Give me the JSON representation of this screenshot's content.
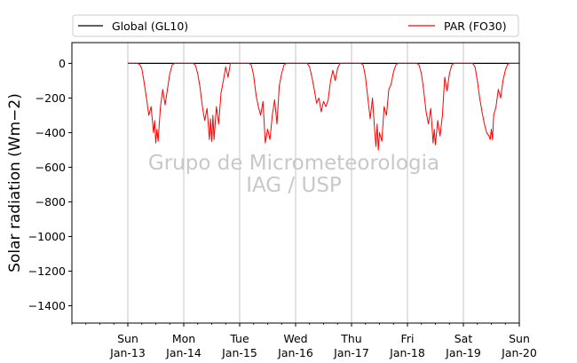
{
  "chart_data": {
    "type": "line",
    "ylabel": "Solar radiation (Wm−2)",
    "ylim": [
      -1500,
      120
    ],
    "xlim": [
      "2020-01-12T00:00",
      "2020-01-20T00:00"
    ],
    "y_ticks": [
      0,
      -200,
      -400,
      -600,
      -800,
      -1000,
      -1200,
      -1400
    ],
    "y_tick_labels": [
      "0",
      "−200",
      "−400",
      "−600",
      "−800",
      "−1000",
      "−1200",
      "−1400"
    ],
    "x_ticks": [
      {
        "x": "2020-01-13T00:00",
        "line1": "Sun",
        "line2": "Jan-13"
      },
      {
        "x": "2020-01-14T00:00",
        "line1": "Mon",
        "line2": "Jan-14"
      },
      {
        "x": "2020-01-15T00:00",
        "line1": "Tue",
        "line2": "Jan-15"
      },
      {
        "x": "2020-01-16T00:00",
        "line1": "Wed",
        "line2": "Jan-16"
      },
      {
        "x": "2020-01-17T00:00",
        "line1": "Thu",
        "line2": "Jan-17"
      },
      {
        "x": "2020-01-18T00:00",
        "line1": "Fri",
        "line2": "Jan-18"
      },
      {
        "x": "2020-01-19T00:00",
        "line1": "Sat",
        "line2": "Jan-19"
      },
      {
        "x": "2020-01-20T00:00",
        "line1": "Sun",
        "line2": "Jan-20"
      }
    ],
    "grid": "vertical",
    "legend": {
      "placement": "top"
    },
    "watermark": [
      "Grupo de Micrometeorologia",
      "IAG / USP"
    ],
    "series": [
      {
        "name": "Global (GL10)",
        "color": "#000000",
        "points": [
          [
            "2020-01-13T00:00",
            0
          ],
          [
            "2020-01-20T00:00",
            0
          ]
        ]
      },
      {
        "name": "PAR (FO30)",
        "color": "#ff0000",
        "points": [
          [
            "2020-01-13T00:00",
            0
          ],
          [
            "2020-01-13T04:00",
            0
          ],
          [
            "2020-01-13T05:00",
            -5
          ],
          [
            "2020-01-13T06:00",
            -30
          ],
          [
            "2020-01-13T07:00",
            -110
          ],
          [
            "2020-01-13T08:00",
            -200
          ],
          [
            "2020-01-13T09:00",
            -300
          ],
          [
            "2020-01-13T10:00",
            -250
          ],
          [
            "2020-01-13T11:00",
            -400
          ],
          [
            "2020-01-13T11:30",
            -330
          ],
          [
            "2020-01-13T12:00",
            -460
          ],
          [
            "2020-01-13T12:30",
            -380
          ],
          [
            "2020-01-13T13:00",
            -450
          ],
          [
            "2020-01-13T14:00",
            -250
          ],
          [
            "2020-01-13T15:00",
            -150
          ],
          [
            "2020-01-13T16:00",
            -240
          ],
          [
            "2020-01-13T17:00",
            -150
          ],
          [
            "2020-01-13T18:00",
            -60
          ],
          [
            "2020-01-13T19:00",
            -10
          ],
          [
            "2020-01-13T20:00",
            0
          ],
          [
            "2020-01-14T00:00",
            0
          ],
          [
            "2020-01-14T04:00",
            0
          ],
          [
            "2020-01-14T05:00",
            -10
          ],
          [
            "2020-01-14T06:00",
            -60
          ],
          [
            "2020-01-14T07:00",
            -140
          ],
          [
            "2020-01-14T08:00",
            -250
          ],
          [
            "2020-01-14T09:00",
            -330
          ],
          [
            "2020-01-14T10:00",
            -260
          ],
          [
            "2020-01-14T11:00",
            -440
          ],
          [
            "2020-01-14T11:30",
            -320
          ],
          [
            "2020-01-14T12:00",
            -450
          ],
          [
            "2020-01-14T12:30",
            -300
          ],
          [
            "2020-01-14T13:00",
            -440
          ],
          [
            "2020-01-14T14:00",
            -250
          ],
          [
            "2020-01-14T15:00",
            -350
          ],
          [
            "2020-01-14T16:00",
            -170
          ],
          [
            "2020-01-14T17:00",
            -100
          ],
          [
            "2020-01-14T18:00",
            -20
          ],
          [
            "2020-01-14T19:00",
            -80
          ],
          [
            "2020-01-14T20:00",
            0
          ],
          [
            "2020-01-15T00:00",
            0
          ],
          [
            "2020-01-15T04:00",
            0
          ],
          [
            "2020-01-15T05:00",
            -10
          ],
          [
            "2020-01-15T06:00",
            -70
          ],
          [
            "2020-01-15T07:00",
            -180
          ],
          [
            "2020-01-15T08:00",
            -250
          ],
          [
            "2020-01-15T09:00",
            -300
          ],
          [
            "2020-01-15T10:00",
            -220
          ],
          [
            "2020-01-15T11:00",
            -460
          ],
          [
            "2020-01-15T12:00",
            -380
          ],
          [
            "2020-01-15T13:00",
            -440
          ],
          [
            "2020-01-15T14:00",
            -300
          ],
          [
            "2020-01-15T15:00",
            -210
          ],
          [
            "2020-01-15T16:00",
            -350
          ],
          [
            "2020-01-15T17:00",
            -130
          ],
          [
            "2020-01-15T18:00",
            -60
          ],
          [
            "2020-01-15T19:00",
            -10
          ],
          [
            "2020-01-15T20:00",
            0
          ],
          [
            "2020-01-16T00:00",
            0
          ],
          [
            "2020-01-16T05:00",
            0
          ],
          [
            "2020-01-16T06:00",
            -20
          ],
          [
            "2020-01-16T07:00",
            -80
          ],
          [
            "2020-01-16T08:00",
            -150
          ],
          [
            "2020-01-16T09:00",
            -230
          ],
          [
            "2020-01-16T10:00",
            -200
          ],
          [
            "2020-01-16T11:00",
            -280
          ],
          [
            "2020-01-16T12:00",
            -220
          ],
          [
            "2020-01-16T13:00",
            -250
          ],
          [
            "2020-01-16T14:00",
            -210
          ],
          [
            "2020-01-16T15:00",
            -100
          ],
          [
            "2020-01-16T16:00",
            -40
          ],
          [
            "2020-01-16T17:00",
            -100
          ],
          [
            "2020-01-16T18:00",
            -30
          ],
          [
            "2020-01-16T19:00",
            0
          ],
          [
            "2020-01-17T00:00",
            0
          ],
          [
            "2020-01-17T04:00",
            0
          ],
          [
            "2020-01-17T05:00",
            -10
          ],
          [
            "2020-01-17T06:00",
            -80
          ],
          [
            "2020-01-17T07:00",
            -200
          ],
          [
            "2020-01-17T08:00",
            -320
          ],
          [
            "2020-01-17T09:00",
            -200
          ],
          [
            "2020-01-17T10:00",
            -400
          ],
          [
            "2020-01-17T10:30",
            -480
          ],
          [
            "2020-01-17T11:00",
            -350
          ],
          [
            "2020-01-17T11:30",
            -500
          ],
          [
            "2020-01-17T12:00",
            -400
          ],
          [
            "2020-01-17T13:00",
            -450
          ],
          [
            "2020-01-17T14:00",
            -250
          ],
          [
            "2020-01-17T15:00",
            -300
          ],
          [
            "2020-01-17T16:00",
            -150
          ],
          [
            "2020-01-17T17:00",
            -120
          ],
          [
            "2020-01-17T18:00",
            -50
          ],
          [
            "2020-01-17T19:00",
            -10
          ],
          [
            "2020-01-17T20:00",
            0
          ],
          [
            "2020-01-18T00:00",
            0
          ],
          [
            "2020-01-18T04:00",
            0
          ],
          [
            "2020-01-18T05:00",
            -10
          ],
          [
            "2020-01-18T06:00",
            -60
          ],
          [
            "2020-01-18T07:00",
            -160
          ],
          [
            "2020-01-18T08:00",
            -280
          ],
          [
            "2020-01-18T09:00",
            -350
          ],
          [
            "2020-01-18T10:00",
            -260
          ],
          [
            "2020-01-18T11:00",
            -460
          ],
          [
            "2020-01-18T11:30",
            -380
          ],
          [
            "2020-01-18T12:00",
            -470
          ],
          [
            "2020-01-18T13:00",
            -330
          ],
          [
            "2020-01-18T14:00",
            -420
          ],
          [
            "2020-01-18T15:00",
            -300
          ],
          [
            "2020-01-18T16:00",
            -80
          ],
          [
            "2020-01-18T17:00",
            -160
          ],
          [
            "2020-01-18T18:00",
            -60
          ],
          [
            "2020-01-18T19:00",
            -10
          ],
          [
            "2020-01-18T20:00",
            0
          ],
          [
            "2020-01-19T00:00",
            0
          ],
          [
            "2020-01-19T04:00",
            0
          ],
          [
            "2020-01-19T05:00",
            -20
          ],
          [
            "2020-01-19T06:00",
            -100
          ],
          [
            "2020-01-19T07:00",
            -200
          ],
          [
            "2020-01-19T08:00",
            -280
          ],
          [
            "2020-01-19T09:00",
            -350
          ],
          [
            "2020-01-19T10:00",
            -400
          ],
          [
            "2020-01-19T11:00",
            -420
          ],
          [
            "2020-01-19T11:30",
            -440
          ],
          [
            "2020-01-19T12:00",
            -380
          ],
          [
            "2020-01-19T12:30",
            -440
          ],
          [
            "2020-01-19T13:00",
            -300
          ],
          [
            "2020-01-19T14:00",
            -250
          ],
          [
            "2020-01-19T15:00",
            -150
          ],
          [
            "2020-01-19T16:00",
            -200
          ],
          [
            "2020-01-19T17:00",
            -100
          ],
          [
            "2020-01-19T18:00",
            -40
          ],
          [
            "2020-01-19T19:00",
            -5
          ],
          [
            "2020-01-19T20:00",
            0
          ],
          [
            "2020-01-20T00:00",
            0
          ]
        ]
      }
    ]
  }
}
